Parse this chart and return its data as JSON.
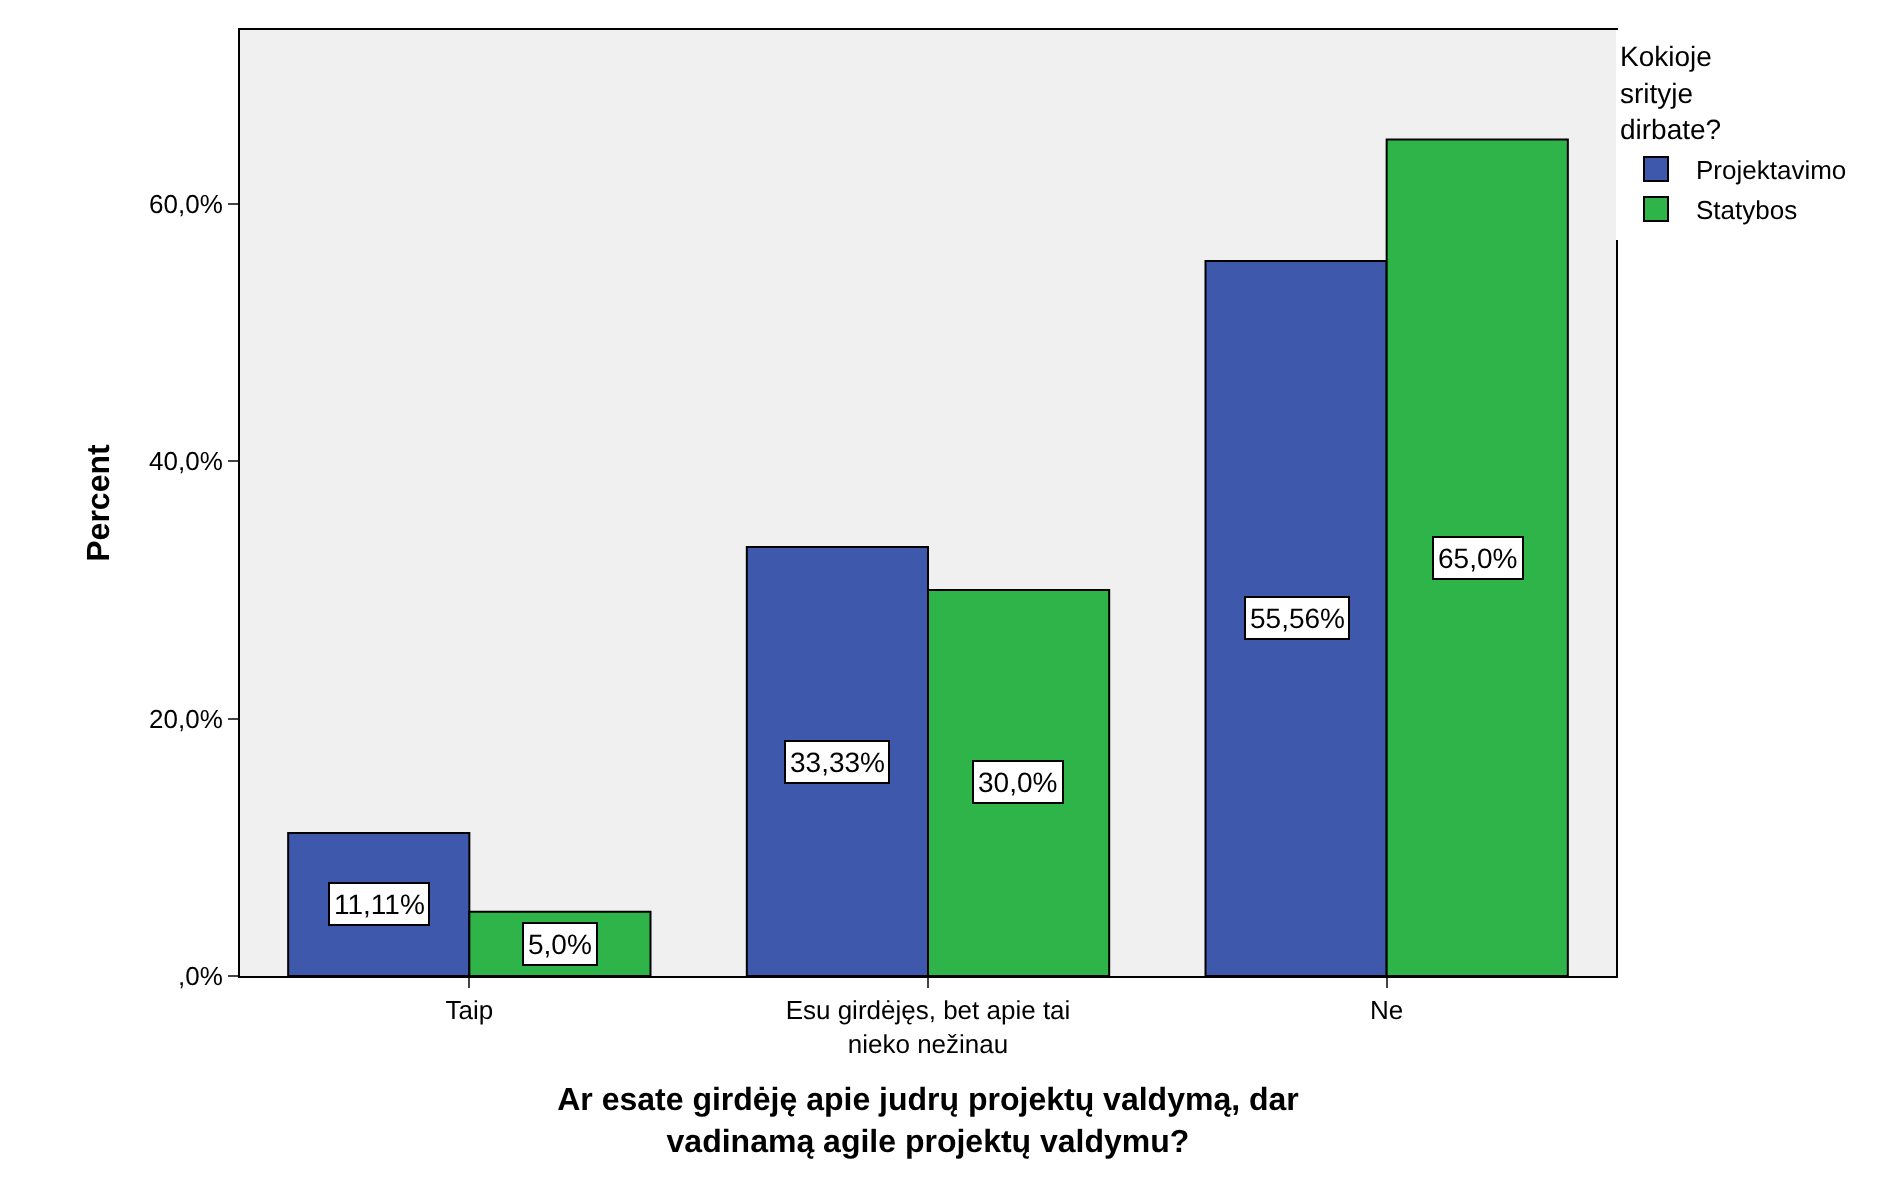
{
  "chart_data": {
    "type": "bar",
    "xlabel": "Ar esate girdėję apie judrų projektų valdymą, dar\nvadinamą agile projektų valdymu?",
    "ylabel": "Percent",
    "legend_title": "Kokioje\nsrityje\ndirbate?",
    "categories": [
      "Taip",
      "Esu girdėjęs, bet apie tai\nnieko nežinau",
      "Ne"
    ],
    "series": [
      {
        "name": "Projektavimo",
        "color": "#3e58ac",
        "values": [
          11.11,
          33.33,
          55.56
        ],
        "value_labels": [
          "11,11%",
          "33,33%",
          "55,56%"
        ]
      },
      {
        "name": "Statybos",
        "color": "#2fb44a",
        "values": [
          5.0,
          30.0,
          65.0
        ],
        "value_labels": [
          "5,0%",
          "30,0%",
          "65,0%"
        ]
      }
    ],
    "ylim": [
      0,
      73.5
    ],
    "yticks": [
      {
        "value": 0,
        "label": ",0%"
      },
      {
        "value": 20,
        "label": "20,0%"
      },
      {
        "value": 40,
        "label": "40,0%"
      },
      {
        "value": 60,
        "label": "60,0%"
      }
    ],
    "grid": false,
    "legend": "top right"
  }
}
